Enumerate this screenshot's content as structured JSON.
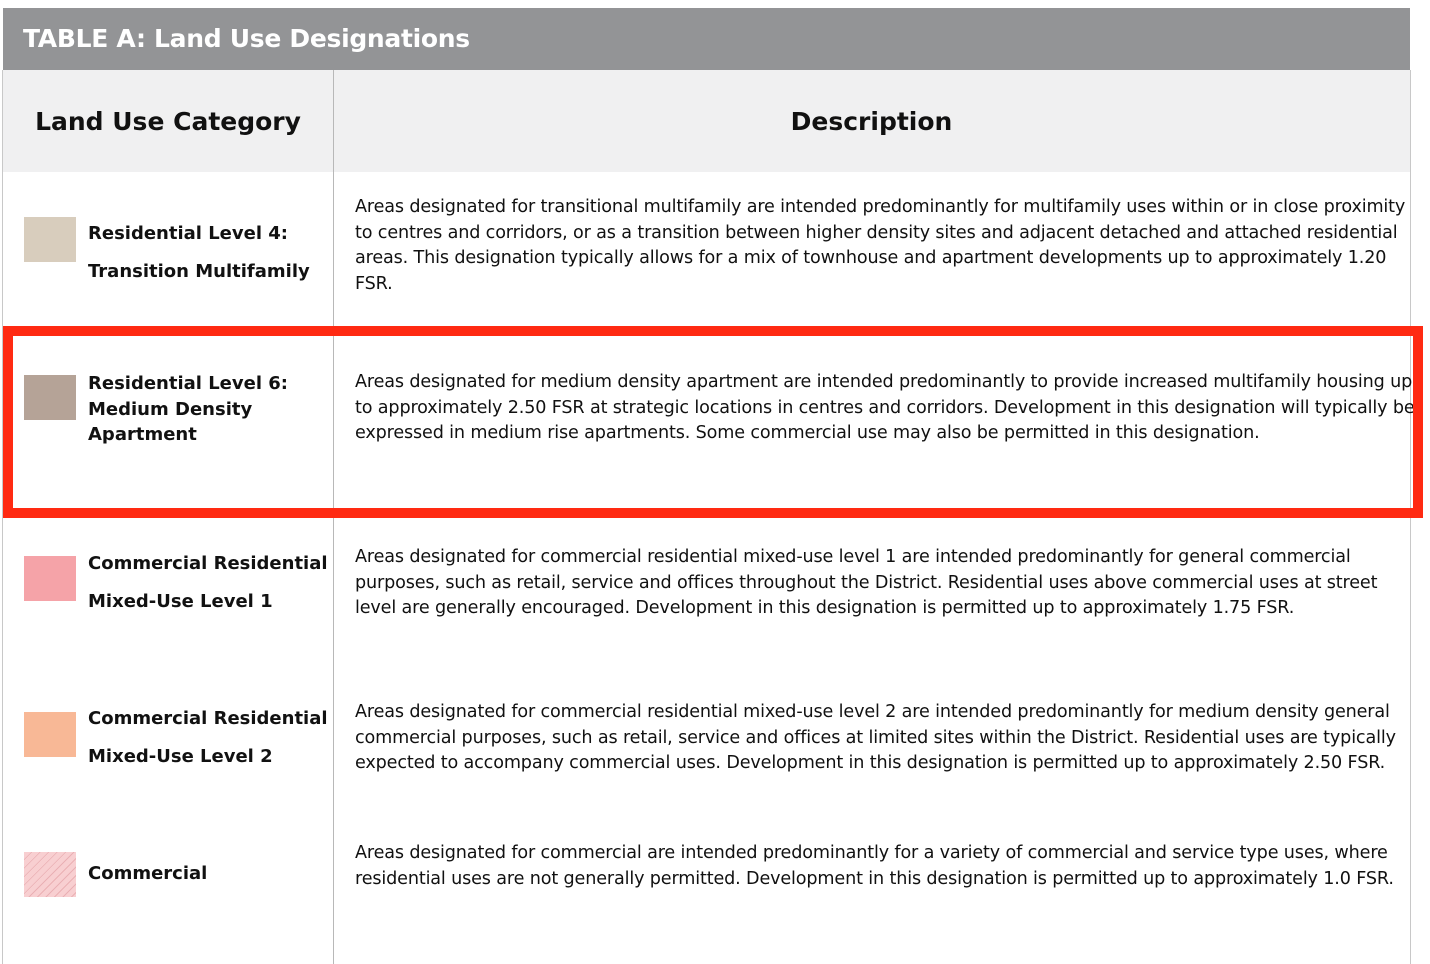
{
  "title": "TABLE A: Land Use Designations",
  "columns": {
    "category": "Land Use Category",
    "description": "Description"
  },
  "colors": {
    "title_bar": "#939496",
    "header_bg": "#f0f0f1",
    "highlight_border": "#ff2a12"
  },
  "rows": [
    {
      "category_line1": "Residential Level 4:",
      "category_line2": "Transition Multifamily",
      "swatch_color": "#d8cdbd",
      "swatch_pattern": "solid",
      "description": "Areas designated for transitional multifamily are intended predominantly for multifamily uses within or in close proximity to centres and corridors, or as a transition between higher density sites and adjacent detached and attached residential areas. This designation typically allows for a mix of townhouse and apartment developments up to approximately 1.20 FSR."
    },
    {
      "category_line1": "Residential Level 6:",
      "category_line2": "Medium Density",
      "category_line3": "Apartment",
      "swatch_color": "#b5a397",
      "swatch_pattern": "solid",
      "highlighted": true,
      "description": "Areas designated for medium density apartment are intended predominantly to provide increased multifamily housing up to approximately 2.50 FSR at strategic locations in centres and corridors. Development in this designation will typically be expressed in medium rise apartments. Some commercial use may also be permitted in this designation."
    },
    {
      "category_line1": "Commercial Residential",
      "category_line2": "Mixed-Use Level 1",
      "swatch_color": "#f5a3a8",
      "swatch_pattern": "solid",
      "description": "Areas designated for commercial residential mixed-use level 1 are intended predominantly for general commercial purposes, such as retail, service and offices throughout the District. Residential uses above commercial uses at street level are generally encouraged. Development in this designation is permitted up to approximately 1.75 FSR."
    },
    {
      "category_line1": "Commercial Residential",
      "category_line2": "Mixed-Use Level 2",
      "swatch_color": "#f8b896",
      "swatch_pattern": "solid",
      "description": "Areas designated for commercial residential mixed-use level 2 are intended predominantly for medium density general commercial purposes, such as retail, service and offices at limited sites within the District. Residential uses are typically expected to accompany commercial uses. Development in this designation is permitted up to approximately 2.50 FSR."
    },
    {
      "category_line1": "Commercial",
      "swatch_color": "#f8cfd1",
      "swatch_pattern": "diagonal-hatch",
      "description": "Areas designated for commercial are intended predominantly for a variety of commercial and service type uses, where residential uses are not generally permitted. Development in this designation is permitted up to approximately 1.0 FSR."
    }
  ]
}
